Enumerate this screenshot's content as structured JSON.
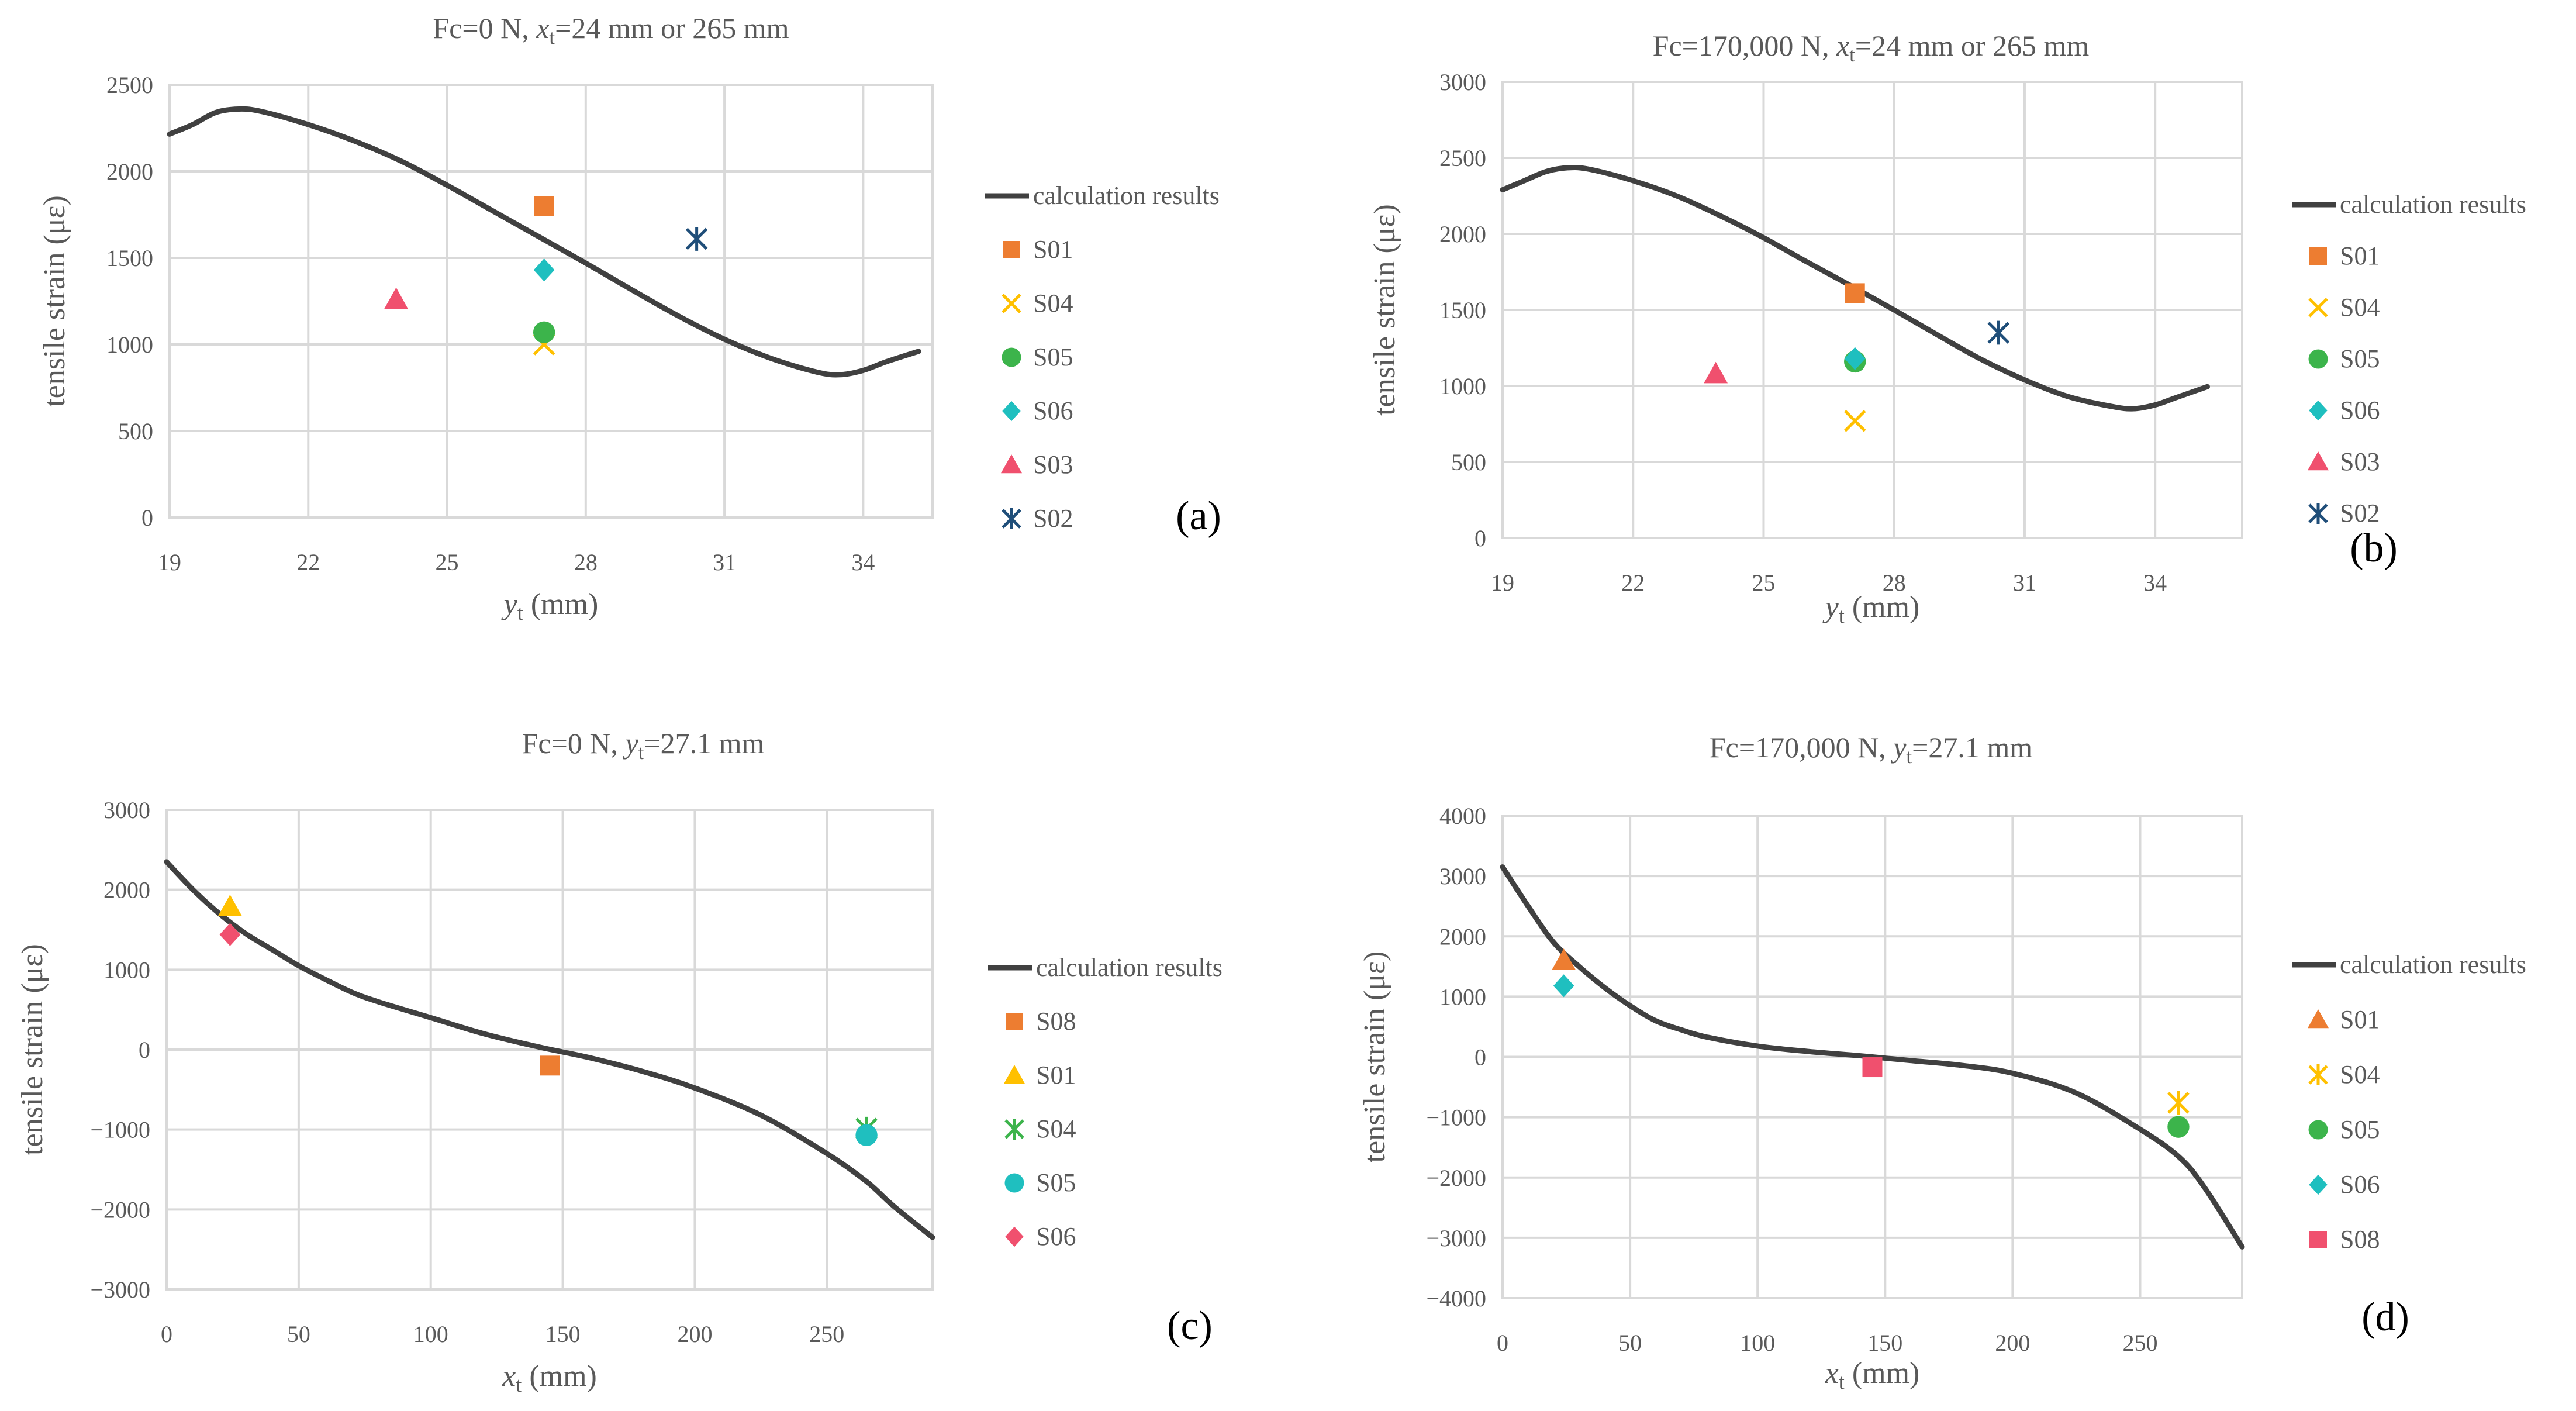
{
  "chart_data": [
    {
      "type": "scatter",
      "panel_label": "(a)",
      "title": {
        "pre": "Fc=0 N, ",
        "var": "x",
        "sub": "t",
        "post": "=24 mm or 265 mm"
      },
      "xlabel": {
        "var": "y",
        "sub": "t",
        "post": " (mm)"
      },
      "ylabel": "tensile strain  (με)",
      "xlim": [
        19,
        35.5
      ],
      "ylim": [
        0,
        2500
      ],
      "xticks": [
        19,
        22,
        25,
        28,
        31,
        34
      ],
      "yticks": [
        0,
        500,
        1000,
        1500,
        2000,
        2500
      ],
      "grid": true,
      "legend_position": "right",
      "curve": {
        "name": "calculation results",
        "x": [
          19,
          19.5,
          20,
          20.5,
          21,
          22,
          23,
          24,
          25,
          26,
          27,
          28,
          29,
          30,
          31,
          32,
          33,
          33.5,
          34,
          34.5,
          35.2
        ],
        "y": [
          2215,
          2270,
          2340,
          2360,
          2345,
          2270,
          2175,
          2060,
          1920,
          1770,
          1620,
          1470,
          1315,
          1165,
          1030,
          920,
          840,
          825,
          850,
          900,
          960
        ]
      },
      "series": [
        {
          "name": "S01",
          "marker": "square",
          "color": "#ed7d31",
          "x": [
            27.1
          ],
          "y": [
            1800
          ]
        },
        {
          "name": "S04",
          "marker": "x",
          "color": "#ffc000",
          "x": [
            27.1
          ],
          "y": [
            1000
          ]
        },
        {
          "name": "S05",
          "marker": "circle",
          "color": "#3cb44b",
          "x": [
            27.1
          ],
          "y": [
            1070
          ]
        },
        {
          "name": "S06",
          "marker": "diamond",
          "color": "#1fbfbf",
          "x": [
            27.1
          ],
          "y": [
            1430
          ]
        },
        {
          "name": "S03",
          "marker": "triangle",
          "color": "#f0506e",
          "x": [
            23.9
          ],
          "y": [
            1260
          ]
        },
        {
          "name": "S02",
          "marker": "star",
          "color": "#1f4e79",
          "x": [
            30.4
          ],
          "y": [
            1610
          ]
        }
      ]
    },
    {
      "type": "scatter",
      "panel_label": "(b)",
      "title": {
        "pre": "Fc=170,000 N, ",
        "var": "x",
        "sub": "t",
        "post": "=24 mm or 265 mm"
      },
      "xlabel": {
        "var": "y",
        "sub": "t",
        "post": " (mm)"
      },
      "ylabel": "tensile strain  (με)",
      "xlim": [
        19,
        36
      ],
      "ylim": [
        0,
        3000
      ],
      "xticks": [
        19,
        22,
        25,
        28,
        31,
        34
      ],
      "yticks": [
        0,
        500,
        1000,
        1500,
        2000,
        2500,
        3000
      ],
      "grid": true,
      "legend_position": "right",
      "curve": {
        "name": "calculation results",
        "x": [
          19,
          19.5,
          20,
          20.5,
          21,
          22,
          23,
          24,
          25,
          26,
          27,
          28,
          29,
          30,
          31,
          32,
          33,
          33.5,
          34,
          34.5,
          35.2
        ],
        "y": [
          2290,
          2350,
          2410,
          2435,
          2425,
          2350,
          2250,
          2120,
          1975,
          1815,
          1660,
          1500,
          1335,
          1175,
          1040,
          930,
          865,
          850,
          875,
          925,
          995
        ]
      },
      "series": [
        {
          "name": "S01",
          "marker": "square",
          "color": "#ed7d31",
          "x": [
            27.1
          ],
          "y": [
            1610
          ]
        },
        {
          "name": "S04",
          "marker": "x",
          "color": "#ffc000",
          "x": [
            27.1
          ],
          "y": [
            770
          ]
        },
        {
          "name": "S05",
          "marker": "circle",
          "color": "#3cb44b",
          "x": [
            27.1
          ],
          "y": [
            1160
          ]
        },
        {
          "name": "S06",
          "marker": "diamond",
          "color": "#1fbfbf",
          "x": [
            27.1
          ],
          "y": [
            1180
          ]
        },
        {
          "name": "S03",
          "marker": "triangle",
          "color": "#f0506e",
          "x": [
            23.9
          ],
          "y": [
            1080
          ]
        },
        {
          "name": "S02",
          "marker": "star",
          "color": "#1f4e79",
          "x": [
            30.4
          ],
          "y": [
            1350
          ]
        }
      ]
    },
    {
      "type": "scatter",
      "panel_label": "(c)",
      "title": {
        "pre": "Fc=0 N, ",
        "var": "y",
        "sub": "t",
        "post": "=27.1 mm"
      },
      "xlabel": {
        "var": "x",
        "sub": "t",
        "post": " (mm)"
      },
      "ylabel": "tensile strain  (με)",
      "xlim": [
        0,
        290
      ],
      "ylim": [
        -3000,
        3000
      ],
      "xticks": [
        0,
        50,
        100,
        150,
        200,
        250
      ],
      "yticks": [
        -3000,
        -2000,
        -1000,
        0,
        1000,
        2000,
        3000
      ],
      "grid": true,
      "legend_position": "right",
      "curve": {
        "name": "calculation results",
        "x": [
          0,
          10,
          20,
          30,
          40,
          50,
          60,
          70,
          80,
          100,
          120,
          140,
          150,
          160,
          180,
          200,
          225,
          250,
          265,
          275,
          290
        ],
        "y": [
          2350,
          2000,
          1700,
          1450,
          1250,
          1050,
          880,
          720,
          600,
          400,
          200,
          40,
          -30,
          -100,
          -270,
          -480,
          -820,
          -1300,
          -1650,
          -1950,
          -2350
        ]
      },
      "series": [
        {
          "name": "S08",
          "marker": "square",
          "color": "#ed7d31",
          "x": [
            145
          ],
          "y": [
            -200
          ]
        },
        {
          "name": "S01",
          "marker": "triangle",
          "color": "#ffc000",
          "x": [
            24
          ],
          "y": [
            1790
          ]
        },
        {
          "name": "S04",
          "marker": "star",
          "color": "#3cb44b",
          "x": [
            265
          ],
          "y": [
            -990
          ]
        },
        {
          "name": "S05",
          "marker": "circle",
          "color": "#1fbfbf",
          "x": [
            265
          ],
          "y": [
            -1070
          ]
        },
        {
          "name": "S06",
          "marker": "diamond",
          "color": "#f0506e",
          "x": [
            24
          ],
          "y": [
            1440
          ]
        }
      ]
    },
    {
      "type": "scatter",
      "panel_label": "(d)",
      "title": {
        "pre": "Fc=170,000 N, ",
        "var": "y",
        "sub": "t",
        "post": "=27.1 mm"
      },
      "xlabel": {
        "var": "x",
        "sub": "t",
        "post": " (mm)"
      },
      "ylabel": "tensile strain  (με)",
      "xlim": [
        0,
        290
      ],
      "ylim": [
        -4000,
        4000
      ],
      "xticks": [
        0,
        50,
        100,
        150,
        200,
        250
      ],
      "yticks": [
        -4000,
        -3000,
        -2000,
        -1000,
        0,
        1000,
        2000,
        3000,
        4000
      ],
      "grid": true,
      "legend_position": "right",
      "curve": {
        "name": "calculation results",
        "x": [
          0,
          10,
          20,
          30,
          40,
          50,
          60,
          70,
          80,
          100,
          120,
          140,
          150,
          160,
          180,
          200,
          225,
          250,
          265,
          275,
          290
        ],
        "y": [
          3150,
          2500,
          1900,
          1500,
          1150,
          850,
          600,
          450,
          330,
          180,
          90,
          20,
          -20,
          -60,
          -140,
          -270,
          -600,
          -1200,
          -1650,
          -2150,
          -3150
        ]
      },
      "series": [
        {
          "name": "S01",
          "marker": "triangle",
          "color": "#ed7d31",
          "x": [
            24
          ],
          "y": [
            1600
          ]
        },
        {
          "name": "S04",
          "marker": "star",
          "color": "#ffc000",
          "x": [
            265
          ],
          "y": [
            -760
          ]
        },
        {
          "name": "S05",
          "marker": "circle",
          "color": "#3cb44b",
          "x": [
            265
          ],
          "y": [
            -1160
          ]
        },
        {
          "name": "S06",
          "marker": "diamond",
          "color": "#1fbfbf",
          "x": [
            24
          ],
          "y": [
            1180
          ]
        },
        {
          "name": "S08",
          "marker": "square",
          "color": "#f0506e",
          "x": [
            145
          ],
          "y": [
            -170
          ]
        }
      ]
    }
  ]
}
